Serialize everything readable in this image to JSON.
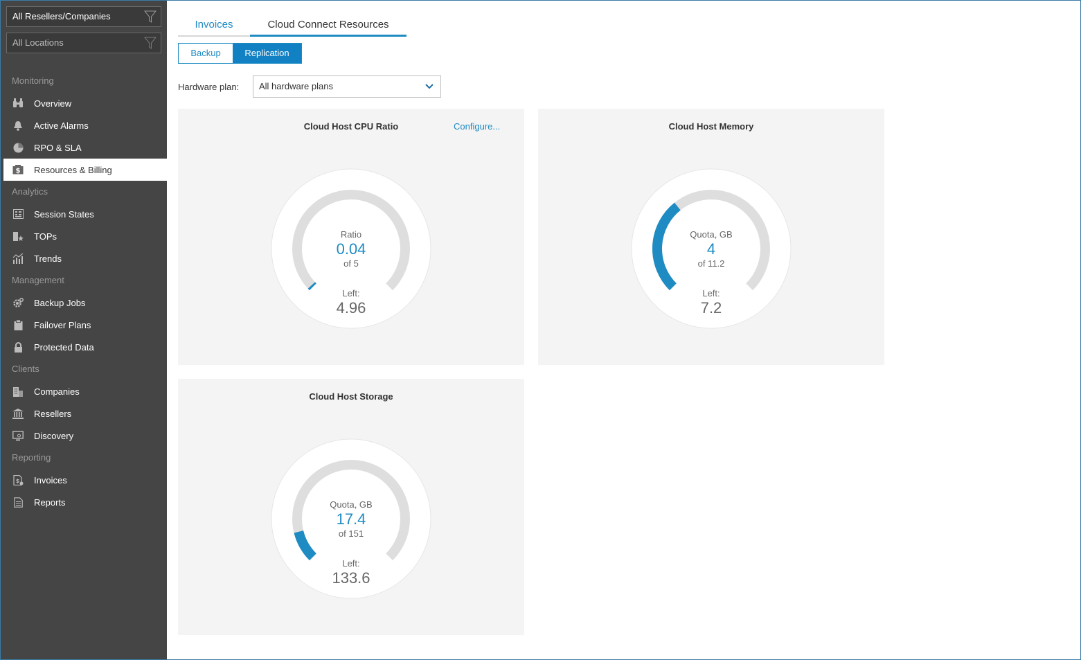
{
  "filters": {
    "resellers": "All Resellers/Companies",
    "locations": "All Locations"
  },
  "sidebar": {
    "sections": [
      {
        "label": "Monitoring",
        "items": [
          {
            "label": "Overview",
            "icon": "binoculars-icon"
          },
          {
            "label": "Active Alarms",
            "icon": "bell-icon"
          },
          {
            "label": "RPO & SLA",
            "icon": "pie-icon"
          },
          {
            "label": "Resources & Billing",
            "icon": "dollar-icon"
          }
        ]
      },
      {
        "label": "Analytics",
        "items": [
          {
            "label": "Session States",
            "icon": "grid-icon"
          },
          {
            "label": "TOPs",
            "icon": "tops-icon"
          },
          {
            "label": "Trends",
            "icon": "trends-icon"
          }
        ]
      },
      {
        "label": "Management",
        "items": [
          {
            "label": "Backup Jobs",
            "icon": "gear-icon"
          },
          {
            "label": "Failover Plans",
            "icon": "clipboard-icon"
          },
          {
            "label": "Protected Data",
            "icon": "lock-icon"
          }
        ]
      },
      {
        "label": "Clients",
        "items": [
          {
            "label": "Companies",
            "icon": "building-icon"
          },
          {
            "label": "Resellers",
            "icon": "bank-icon"
          },
          {
            "label": "Discovery",
            "icon": "monitor-icon"
          }
        ]
      },
      {
        "label": "Reporting",
        "items": [
          {
            "label": "Invoices",
            "icon": "invoice-icon"
          },
          {
            "label": "Reports",
            "icon": "report-icon"
          }
        ]
      }
    ],
    "active": "Resources & Billing"
  },
  "tabs": {
    "invoices": "Invoices",
    "cloud_connect": "Cloud Connect Resources"
  },
  "segment": {
    "backup": "Backup",
    "replication": "Replication"
  },
  "hardware": {
    "label": "Hardware plan:",
    "value": "All hardware plans"
  },
  "accent_color": "#1e8bc3",
  "cards": {
    "cpu": {
      "title": "Cloud Host CPU Ratio",
      "configure": "Configure...",
      "caption": "Ratio",
      "value": "0.04",
      "of": "of 5",
      "left_label": "Left:",
      "left_value": "4.96",
      "fraction": 0.008
    },
    "memory": {
      "title": "Cloud Host Memory",
      "caption": "Quota, GB",
      "value": "4",
      "of": "of 11.2",
      "left_label": "Left:",
      "left_value": "7.2",
      "fraction": 0.357
    },
    "storage": {
      "title": "Cloud Host Storage",
      "caption": "Quota, GB",
      "value": "17.4",
      "of": "of 151",
      "left_label": "Left:",
      "left_value": "133.6",
      "fraction": 0.115
    }
  }
}
